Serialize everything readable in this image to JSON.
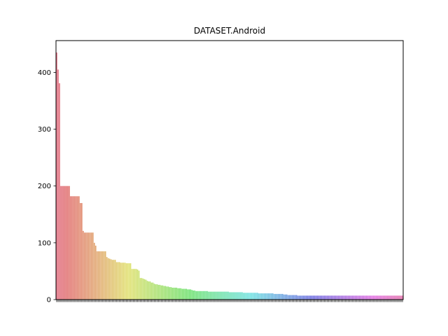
{
  "chart_data": {
    "type": "bar",
    "title": "DATASET.Android",
    "xlabel": "",
    "ylabel": "",
    "ylim": [
      0,
      456
    ],
    "yticks": [
      0,
      100,
      200,
      300,
      400
    ],
    "grid": false,
    "legend": "none",
    "palette": "husl gradient, one hue per bar",
    "categories_note": "x-axis tick labels overlap and are unreadable",
    "values": [
      435,
      405,
      381,
      200,
      200,
      200,
      200,
      200,
      200,
      200,
      182,
      182,
      182,
      182,
      182,
      182,
      182,
      170,
      170,
      121,
      118,
      118,
      118,
      118,
      118,
      118,
      118,
      100,
      95,
      85,
      85,
      85,
      85,
      85,
      85,
      85,
      75,
      73,
      72,
      71,
      70,
      70,
      70,
      66,
      66,
      66,
      65,
      65,
      65,
      65,
      64,
      64,
      64,
      64,
      54,
      54,
      54,
      54,
      53,
      51,
      38,
      38,
      37,
      36,
      35,
      33,
      32,
      32,
      30,
      30,
      28,
      27,
      27,
      26,
      26,
      25,
      25,
      24,
      24,
      23,
      23,
      22,
      22,
      21,
      21,
      21,
      21,
      20,
      20,
      20,
      19,
      19,
      19,
      19,
      18,
      18,
      18,
      17,
      16,
      16,
      15,
      15,
      15,
      15,
      15,
      15,
      15,
      15,
      15,
      14,
      14,
      14,
      14,
      14,
      14,
      14,
      14,
      14,
      14,
      14,
      14,
      14,
      14,
      14,
      13,
      13,
      13,
      13,
      13,
      13,
      13,
      13,
      13,
      13,
      12,
      12,
      12,
      12,
      12,
      12,
      12,
      12,
      12,
      12,
      12,
      11,
      11,
      11,
      11,
      11,
      11,
      11,
      11,
      11,
      11,
      11,
      10,
      10,
      10,
      10,
      10,
      10,
      10,
      9,
      9,
      9,
      8,
      8,
      8,
      8,
      8,
      8,
      8,
      7,
      7,
      7,
      7,
      7,
      7,
      7,
      7,
      7,
      7,
      7,
      7,
      7,
      7,
      7,
      7,
      7,
      7,
      7,
      7,
      7,
      7,
      7,
      7,
      7,
      7,
      7,
      7,
      7,
      7,
      7,
      7,
      7,
      7,
      7,
      7,
      7,
      7,
      7,
      7,
      7,
      7,
      7,
      7,
      7,
      7,
      7,
      7,
      7,
      7,
      7,
      7,
      7,
      7,
      7,
      7,
      7,
      7,
      7,
      7,
      7,
      7,
      7,
      7,
      7,
      7,
      7,
      7,
      7,
      7,
      7,
      7,
      7,
      7,
      7,
      7
    ]
  }
}
